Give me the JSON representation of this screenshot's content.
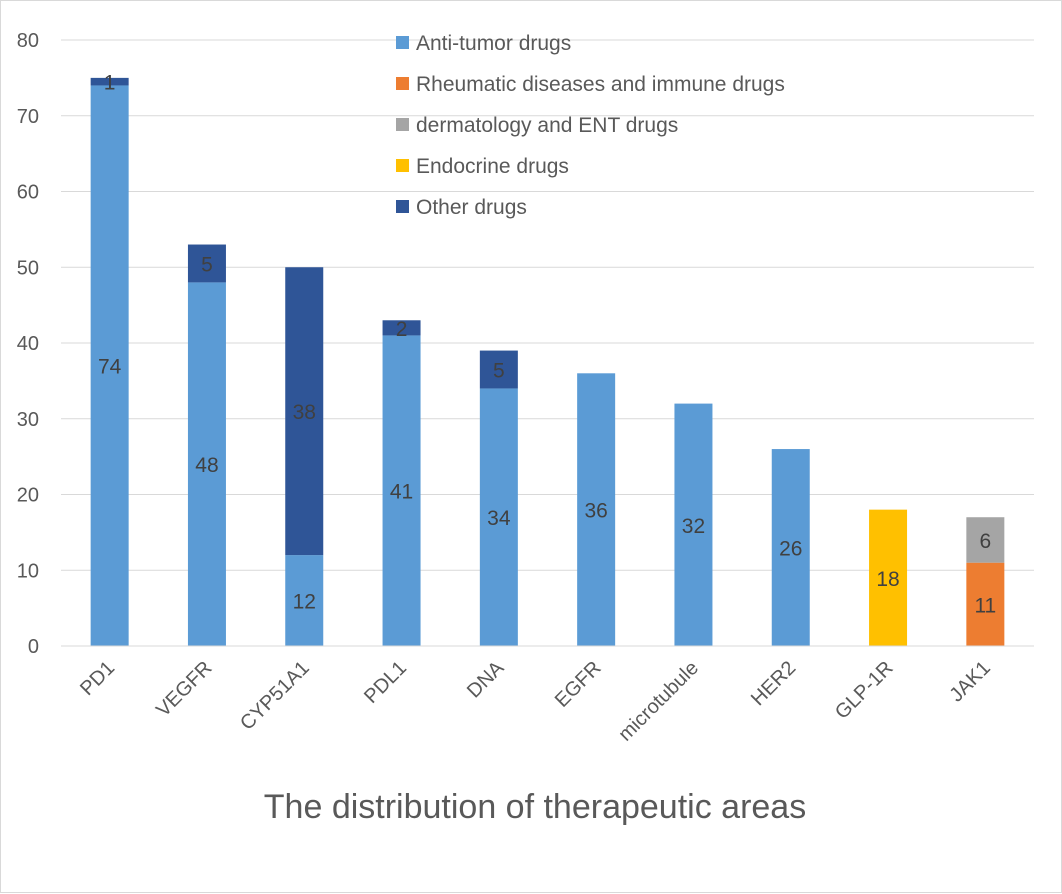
{
  "chart_data": {
    "type": "bar",
    "stacked": true,
    "title": "The distribution of therapeutic areas",
    "xlabel": "",
    "ylabel": "",
    "ylim": [
      0,
      80
    ],
    "yticks": [
      0,
      10,
      20,
      30,
      40,
      50,
      60,
      70,
      80
    ],
    "grid": true,
    "legend_position": "top-center",
    "categories": [
      "PD1",
      "VEGFR",
      "CYP51A1",
      "PDL1",
      "DNA",
      "EGFR",
      "microtubule",
      "HER2",
      "GLP-1R",
      "JAK1"
    ],
    "series": [
      {
        "name": "Anti-tumor drugs",
        "color": "#5b9bd5",
        "values": [
          74,
          48,
          12,
          41,
          34,
          36,
          32,
          26,
          0,
          0
        ]
      },
      {
        "name": "Rheumatic diseases and immune drugs",
        "color": "#ed7d31",
        "values": [
          0,
          0,
          0,
          0,
          0,
          0,
          0,
          0,
          0,
          11
        ]
      },
      {
        "name": "dermatology and ENT drugs",
        "color": "#a5a5a5",
        "values": [
          0,
          0,
          0,
          0,
          0,
          0,
          0,
          0,
          0,
          6
        ]
      },
      {
        "name": "Endocrine drugs",
        "color": "#ffc000",
        "values": [
          0,
          0,
          0,
          0,
          0,
          0,
          0,
          0,
          18,
          0
        ]
      },
      {
        "name": "Other drugs",
        "color": "#2f5597",
        "values": [
          1,
          5,
          38,
          2,
          5,
          0,
          0,
          0,
          0,
          0
        ]
      }
    ]
  }
}
